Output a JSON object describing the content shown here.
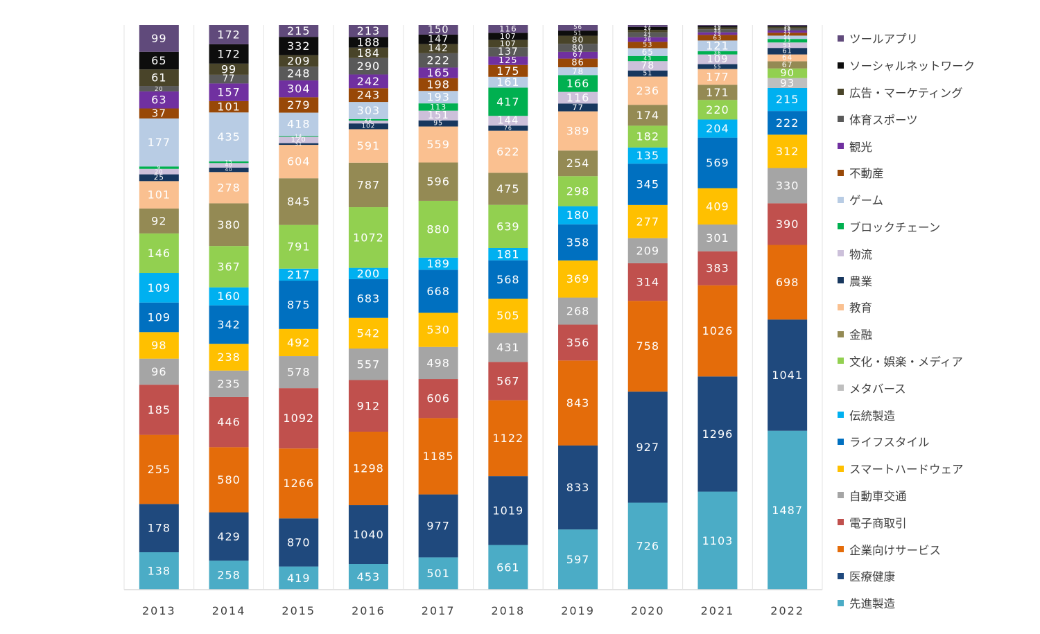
{
  "chart_data": {
    "type": "bar",
    "stacked": true,
    "title": "",
    "xlabel": "",
    "ylabel": "",
    "legend_position": "right",
    "grid": false,
    "categories": [
      "2013",
      "2014",
      "2015",
      "2016",
      "2017",
      "2018",
      "2019",
      "2020",
      "2021",
      "2022"
    ],
    "series": [
      {
        "name": "先進製造",
        "color": "#4BACC6",
        "values": [
          138,
          258,
          419,
          453,
          501,
          661,
          597,
          726,
          1103,
          1487
        ]
      },
      {
        "name": "医療健康",
        "color": "#1F497D",
        "values": [
          178,
          429,
          870,
          1040,
          977,
          1019,
          833,
          927,
          1296,
          1041
        ]
      },
      {
        "name": "企業向けサービス",
        "color": "#E46C0A",
        "values": [
          255,
          580,
          1266,
          1298,
          1185,
          1122,
          843,
          758,
          1026,
          698
        ]
      },
      {
        "name": "電子商取引",
        "color": "#C0504D",
        "values": [
          185,
          446,
          1092,
          912,
          606,
          567,
          356,
          314,
          383,
          390
        ]
      },
      {
        "name": "自動車交通",
        "color": "#A5A5A5",
        "values": [
          96,
          235,
          578,
          557,
          498,
          431,
          268,
          209,
          301,
          330
        ]
      },
      {
        "name": "スマートハードウェア",
        "color": "#FFC000",
        "values": [
          98,
          238,
          492,
          542,
          530,
          505,
          369,
          277,
          409,
          312
        ]
      },
      {
        "name": "ライフスタイル",
        "color": "#0070C0",
        "values": [
          109,
          342,
          875,
          683,
          668,
          568,
          358,
          345,
          569,
          222
        ]
      },
      {
        "name": "伝統製造",
        "color": "#00B0F0",
        "values": [
          109,
          160,
          217,
          200,
          189,
          181,
          180,
          135,
          204,
          215
        ]
      },
      {
        "name": "メタバース",
        "color": "#BFBFBF",
        "values": [
          0,
          0,
          0,
          0,
          0,
          0,
          0,
          0,
          0,
          93
        ]
      },
      {
        "name": "文化・娯楽・メディア",
        "color": "#92D050",
        "values": [
          146,
          367,
          791,
          1072,
          880,
          639,
          298,
          182,
          220,
          90
        ]
      },
      {
        "name": "金融",
        "color": "#948A54",
        "values": [
          92,
          380,
          845,
          787,
          596,
          475,
          254,
          174,
          171,
          67
        ]
      },
      {
        "name": "教育",
        "color": "#FAC090",
        "values": [
          101,
          278,
          604,
          591,
          559,
          622,
          389,
          236,
          177,
          64
        ]
      },
      {
        "name": "農業",
        "color": "#17375E",
        "values": [
          25,
          40,
          31,
          102,
          95,
          76,
          77,
          51,
          55,
          61
        ]
      },
      {
        "name": "物流",
        "color": "#CCC0DA",
        "values": [
          20,
          40,
          120,
          50,
          151,
          144,
          116,
          78,
          109,
          51
        ]
      },
      {
        "name": "ブロックチェーン",
        "color": "#00B050",
        "values": [
          9,
          15,
          14,
          27,
          113,
          417,
          166,
          43,
          36,
          33
        ]
      },
      {
        "name": "ゲーム",
        "color": "#B8CCE4",
        "values": [
          177,
          435,
          418,
          303,
          193,
          161,
          78,
          65,
          121,
          31
        ]
      },
      {
        "name": "不動産",
        "color": "#984807",
        "values": [
          37,
          101,
          279,
          243,
          198,
          175,
          86,
          53,
          63,
          27
        ]
      },
      {
        "name": "観光",
        "color": "#7030A0",
        "values": [
          63,
          157,
          304,
          242,
          165,
          125,
          67,
          38,
          29,
          21
        ]
      },
      {
        "name": "体育スポーツ",
        "color": "#595959",
        "values": [
          20,
          77,
          248,
          290,
          222,
          137,
          80,
          41,
          35,
          19
        ]
      },
      {
        "name": "広告・マーケティング",
        "color": "#494429",
        "values": [
          61,
          99,
          209,
          184,
          142,
          107,
          80,
          21,
          19,
          15
        ]
      },
      {
        "name": "ソーシャルネットワーク",
        "color": "#0D0D0D",
        "values": [
          65,
          172,
          332,
          188,
          147,
          107,
          51,
          24,
          19,
          11
        ]
      },
      {
        "name": "ツールアプリ",
        "color": "#604A7B",
        "values": [
          99,
          172,
          215,
          213,
          150,
          116,
          56,
          17,
          10,
          7
        ]
      }
    ]
  }
}
